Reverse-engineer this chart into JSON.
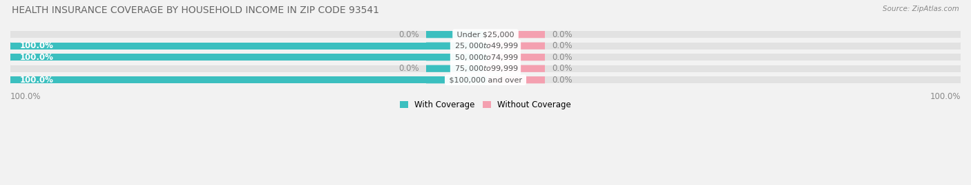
{
  "title": "HEALTH INSURANCE COVERAGE BY HOUSEHOLD INCOME IN ZIP CODE 93541",
  "source": "Source: ZipAtlas.com",
  "categories": [
    "Under $25,000",
    "$25,000 to $49,999",
    "$50,000 to $74,999",
    "$75,000 to $99,999",
    "$100,000 and over"
  ],
  "with_coverage": [
    0.0,
    100.0,
    100.0,
    0.0,
    100.0
  ],
  "without_coverage": [
    0.0,
    0.0,
    0.0,
    0.0,
    0.0
  ],
  "color_with": "#3bbfbf",
  "color_without": "#f4a0b0",
  "bg_color": "#f2f2f2",
  "bar_bg_color": "#e2e2e2",
  "title_color": "#666666",
  "label_color": "#888888",
  "text_in_bar": "#ffffff",
  "cat_color": "#555555",
  "title_fontsize": 10,
  "label_fontsize": 8.5,
  "cat_fontsize": 8.0,
  "bar_height": 0.62,
  "figsize": [
    14.06,
    2.69
  ],
  "dpi": 100,
  "xlim": [
    -100,
    100
  ],
  "left_pct_label": "100.0%",
  "right_pct_label": "100.0%"
}
